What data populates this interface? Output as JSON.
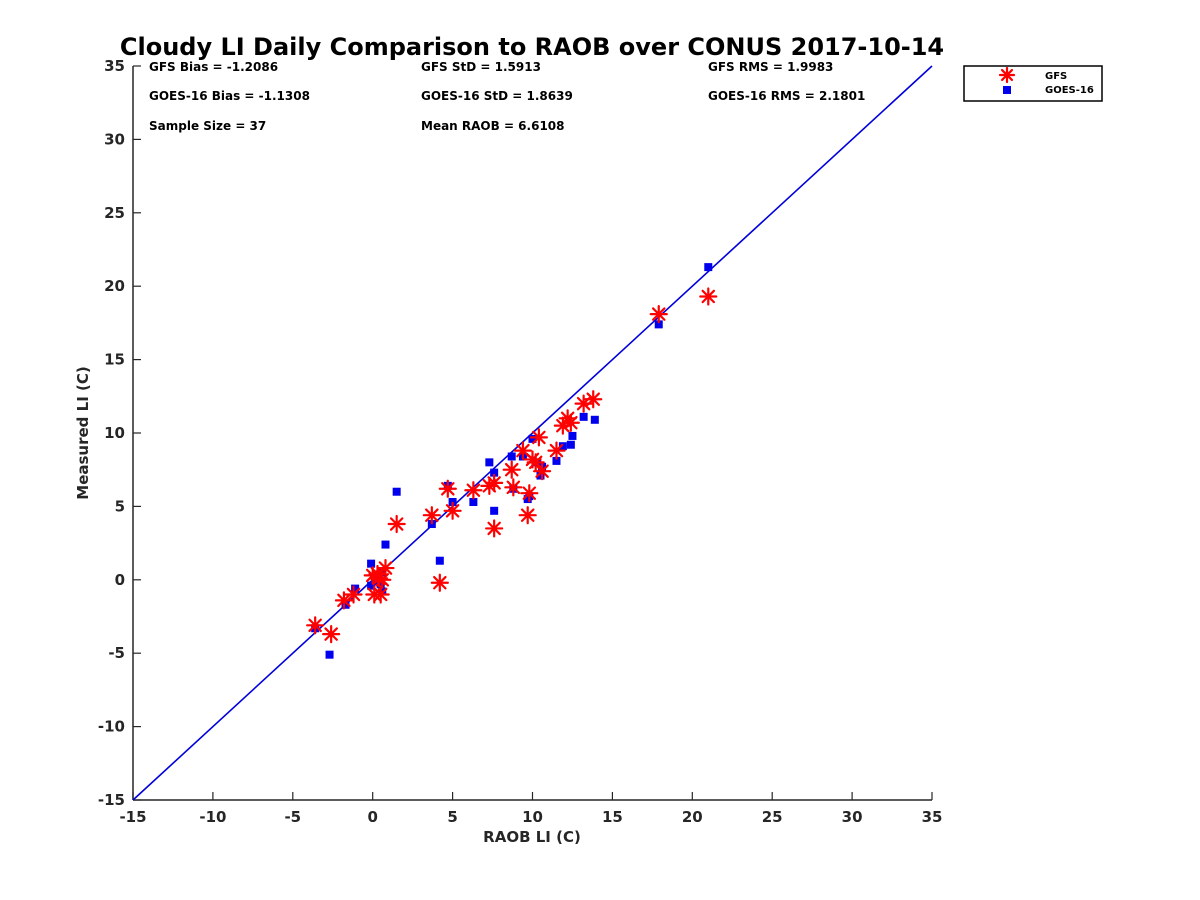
{
  "chart_data": {
    "type": "scatter",
    "title": "Cloudy LI Daily Comparison to RAOB over CONUS 2017-10-14",
    "xlabel": "RAOB LI (C)",
    "ylabel": "Measured LI (C)",
    "xlim": [
      -15,
      35
    ],
    "ylim": [
      -15,
      35
    ],
    "xticks": [
      "-15",
      "-10",
      "-5",
      "0",
      "5",
      "10",
      "15",
      "20",
      "25",
      "30",
      "35"
    ],
    "yticks": [
      "-15",
      "-10",
      "-5",
      "0",
      "5",
      "10",
      "15",
      "20",
      "25",
      "30",
      "35"
    ],
    "grid": false,
    "legend_position": "outside top-right",
    "stats": [
      "GFS Bias = -1.2086",
      "GFS StD = 1.5913",
      "GFS RMS = 1.9983",
      "GOES-16 Bias = -1.1308",
      "GOES-16 StD = 1.8639",
      "GOES-16 RMS = 2.1801",
      "Sample Size = 37",
      "Mean RAOB = 6.6108"
    ],
    "reference_line": {
      "from": [
        -15,
        -15
      ],
      "to": [
        35,
        35
      ],
      "color": "#0000dd"
    },
    "series": [
      {
        "name": "GFS",
        "marker": "asterisk",
        "color": "#ff0000",
        "points": [
          [
            -3.6,
            -3.1
          ],
          [
            -2.6,
            -3.7
          ],
          [
            -1.8,
            -1.4
          ],
          [
            -1.2,
            -1.0
          ],
          [
            0.0,
            0.3
          ],
          [
            0.1,
            -1.0
          ],
          [
            0.3,
            0.4
          ],
          [
            0.5,
            -1.0
          ],
          [
            0.6,
            0.0
          ],
          [
            0.8,
            0.8
          ],
          [
            1.5,
            3.8
          ],
          [
            3.7,
            4.4
          ],
          [
            4.2,
            -0.2
          ],
          [
            4.7,
            6.2
          ],
          [
            5.0,
            4.7
          ],
          [
            6.3,
            6.1
          ],
          [
            7.3,
            6.4
          ],
          [
            7.6,
            6.6
          ],
          [
            7.6,
            3.5
          ],
          [
            8.7,
            7.5
          ],
          [
            8.8,
            6.3
          ],
          [
            9.4,
            8.8
          ],
          [
            9.7,
            4.4
          ],
          [
            9.8,
            5.9
          ],
          [
            10.0,
            8.2
          ],
          [
            10.4,
            9.7
          ],
          [
            10.6,
            7.4
          ],
          [
            11.5,
            8.8
          ],
          [
            11.9,
            10.5
          ],
          [
            12.2,
            11.0
          ],
          [
            12.4,
            10.7
          ],
          [
            13.2,
            12.0
          ],
          [
            13.8,
            12.3
          ],
          [
            17.9,
            18.1
          ],
          [
            21.0,
            19.3
          ],
          [
            0.4,
            0.1
          ],
          [
            10.2,
            8.0
          ]
        ]
      },
      {
        "name": "GOES-16",
        "marker": "square",
        "color": "#0000ee",
        "points": [
          [
            -3.6,
            -3.3
          ],
          [
            -2.7,
            -5.1
          ],
          [
            -1.7,
            -1.7
          ],
          [
            -1.1,
            -0.6
          ],
          [
            -0.1,
            1.1
          ],
          [
            -0.1,
            -0.4
          ],
          [
            0.2,
            -0.1
          ],
          [
            0.5,
            -0.3
          ],
          [
            0.6,
            -0.8
          ],
          [
            0.6,
            0.5
          ],
          [
            0.8,
            2.4
          ],
          [
            1.5,
            6.0
          ],
          [
            3.7,
            3.8
          ],
          [
            4.2,
            1.3
          ],
          [
            4.7,
            6.4
          ],
          [
            5.0,
            5.3
          ],
          [
            6.3,
            5.3
          ],
          [
            7.3,
            8.0
          ],
          [
            7.6,
            7.3
          ],
          [
            7.6,
            4.7
          ],
          [
            8.7,
            8.4
          ],
          [
            8.8,
            6.2
          ],
          [
            9.4,
            8.4
          ],
          [
            9.7,
            5.5
          ],
          [
            9.8,
            5.7
          ],
          [
            10.0,
            9.6
          ],
          [
            10.3,
            8.0
          ],
          [
            10.5,
            7.1
          ],
          [
            10.6,
            7.7
          ],
          [
            11.5,
            8.1
          ],
          [
            11.9,
            9.1
          ],
          [
            12.4,
            9.2
          ],
          [
            12.5,
            9.8
          ],
          [
            13.2,
            11.1
          ],
          [
            13.9,
            10.9
          ],
          [
            17.9,
            17.4
          ],
          [
            21.0,
            21.3
          ]
        ]
      }
    ]
  }
}
